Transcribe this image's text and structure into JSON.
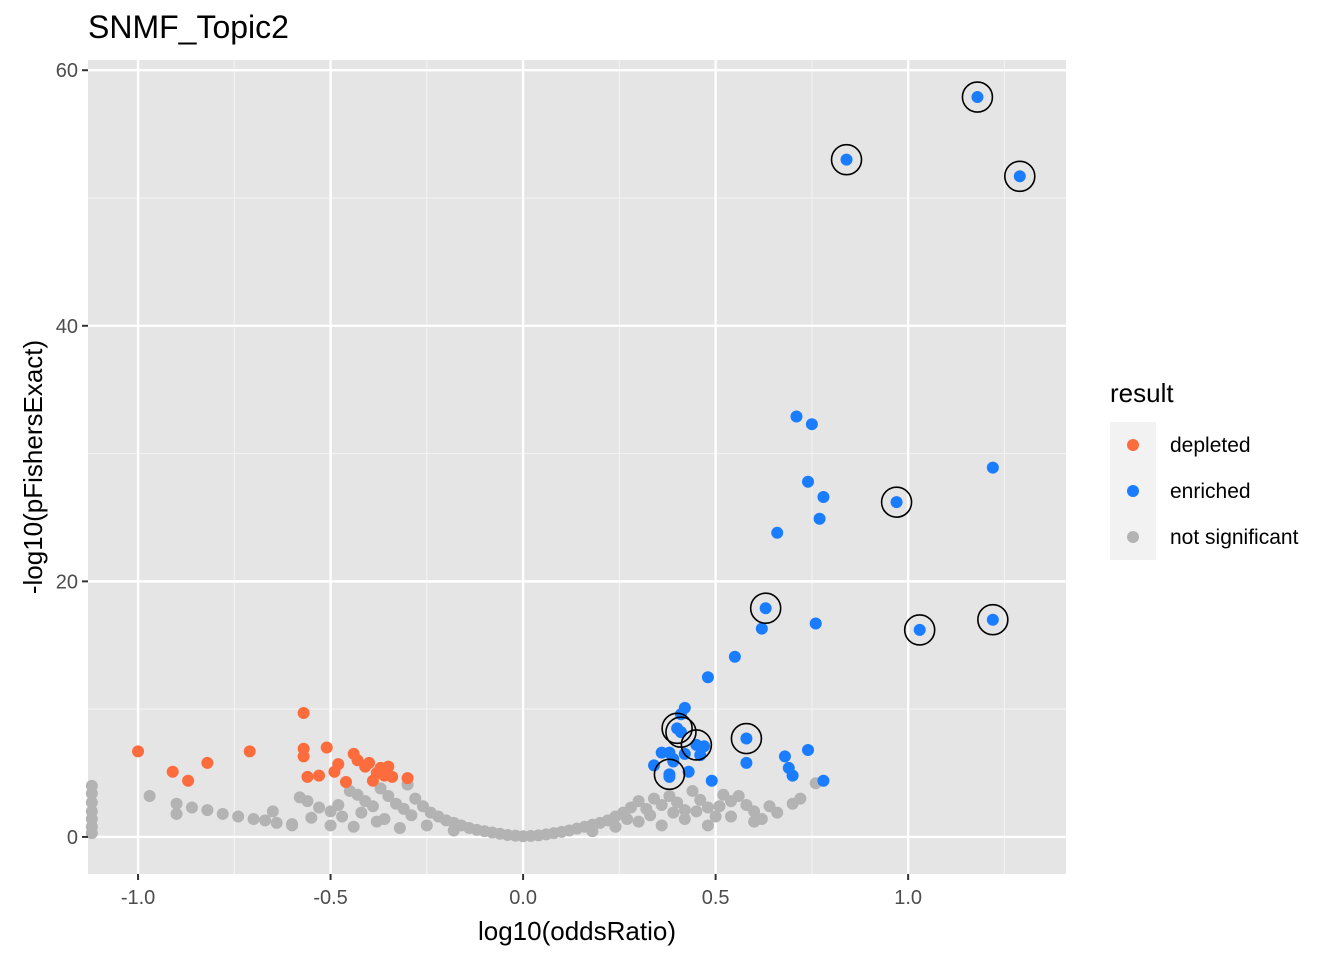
{
  "chart_data": {
    "type": "scatter",
    "title": "SNMF_Topic2",
    "xlabel": "log10(oddsRatio)",
    "ylabel": "-log10(pFishersExact)",
    "xlim": [
      -1.13,
      1.41
    ],
    "ylim": [
      -2.9,
      60.8
    ],
    "x_ticks": [
      -1.0,
      -0.5,
      0.0,
      0.5,
      1.0
    ],
    "x_tick_labels": [
      "-1.0",
      "-0.5",
      "0.0",
      "0.5",
      "1.0"
    ],
    "y_ticks": [
      0,
      20,
      40,
      60
    ],
    "y_tick_labels": [
      "0",
      "20",
      "40",
      "60"
    ],
    "grid": true,
    "panel_background": "#e5e5e5",
    "legend": {
      "title": "result",
      "position": "right",
      "entries": [
        {
          "label": "depleted",
          "color": "#fc6c3d"
        },
        {
          "label": "enriched",
          "color": "#1a7cff"
        },
        {
          "label": "not significant",
          "color": "#b3b3b3"
        }
      ]
    },
    "series": [
      {
        "name": "depleted",
        "color": "#fc6c3d",
        "points": [
          [
            -1.0,
            6.7
          ],
          [
            -0.91,
            5.1
          ],
          [
            -0.87,
            4.4
          ],
          [
            -0.82,
            5.8
          ],
          [
            -0.71,
            6.7
          ],
          [
            -0.57,
            9.7
          ],
          [
            -0.57,
            6.9
          ],
          [
            -0.57,
            6.3
          ],
          [
            -0.56,
            4.7
          ],
          [
            -0.53,
            4.8
          ],
          [
            -0.51,
            7.0
          ],
          [
            -0.49,
            5.1
          ],
          [
            -0.48,
            5.7
          ],
          [
            -0.46,
            4.3
          ],
          [
            -0.44,
            6.5
          ],
          [
            -0.43,
            6.0
          ],
          [
            -0.41,
            5.5
          ],
          [
            -0.4,
            5.8
          ],
          [
            -0.39,
            4.4
          ],
          [
            -0.38,
            5.0
          ],
          [
            -0.37,
            5.4
          ],
          [
            -0.36,
            4.8
          ],
          [
            -0.35,
            5.5
          ],
          [
            -0.34,
            4.7
          ],
          [
            -0.3,
            4.6
          ]
        ]
      },
      {
        "name": "enriched",
        "color": "#1a7cff",
        "points": [
          [
            1.18,
            57.9
          ],
          [
            0.84,
            53.0
          ],
          [
            1.29,
            51.7
          ],
          [
            0.71,
            32.9
          ],
          [
            0.75,
            32.3
          ],
          [
            1.22,
            28.9
          ],
          [
            0.74,
            27.8
          ],
          [
            0.78,
            26.6
          ],
          [
            0.97,
            26.2
          ],
          [
            0.77,
            24.9
          ],
          [
            0.66,
            23.8
          ],
          [
            0.63,
            17.9
          ],
          [
            1.22,
            17.0
          ],
          [
            0.76,
            16.7
          ],
          [
            0.62,
            16.3
          ],
          [
            1.03,
            16.2
          ],
          [
            0.55,
            14.1
          ],
          [
            0.48,
            12.5
          ],
          [
            0.42,
            10.1
          ],
          [
            0.41,
            9.6
          ],
          [
            0.4,
            8.5
          ],
          [
            0.41,
            8.2
          ],
          [
            0.45,
            7.2
          ],
          [
            0.47,
            7.1
          ],
          [
            0.58,
            7.7
          ],
          [
            0.74,
            6.8
          ],
          [
            0.36,
            6.6
          ],
          [
            0.38,
            6.6
          ],
          [
            0.42,
            6.5
          ],
          [
            0.46,
            6.4
          ],
          [
            0.68,
            6.3
          ],
          [
            0.39,
            5.9
          ],
          [
            0.34,
            5.6
          ],
          [
            0.58,
            5.8
          ],
          [
            0.69,
            5.4
          ],
          [
            0.43,
            5.1
          ],
          [
            0.38,
            4.9
          ],
          [
            0.38,
            4.7
          ],
          [
            0.7,
            4.8
          ],
          [
            0.49,
            4.4
          ],
          [
            0.78,
            4.4
          ],
          [
            0.39,
            6.1
          ]
        ]
      },
      {
        "name": "not significant",
        "color": "#b3b3b3",
        "points": [
          [
            -1.12,
            4.0
          ],
          [
            -1.12,
            3.4
          ],
          [
            -1.12,
            2.7
          ],
          [
            -1.12,
            2.0
          ],
          [
            -1.12,
            1.4
          ],
          [
            -1.12,
            0.8
          ],
          [
            -1.12,
            0.3
          ],
          [
            -0.97,
            3.2
          ],
          [
            -0.9,
            2.6
          ],
          [
            -0.86,
            2.3
          ],
          [
            -0.82,
            2.1
          ],
          [
            -0.78,
            1.8
          ],
          [
            -0.74,
            1.6
          ],
          [
            -0.7,
            1.4
          ],
          [
            -0.67,
            1.3
          ],
          [
            -0.64,
            1.1
          ],
          [
            -0.6,
            1.0
          ],
          [
            -0.58,
            3.1
          ],
          [
            -0.56,
            2.8
          ],
          [
            -0.53,
            2.3
          ],
          [
            -0.5,
            2.0
          ],
          [
            -0.47,
            1.6
          ],
          [
            -0.45,
            3.6
          ],
          [
            -0.43,
            3.3
          ],
          [
            -0.41,
            2.8
          ],
          [
            -0.39,
            2.4
          ],
          [
            -0.37,
            3.8
          ],
          [
            -0.35,
            3.2
          ],
          [
            -0.33,
            2.6
          ],
          [
            -0.31,
            2.2
          ],
          [
            -0.3,
            4.1
          ],
          [
            -0.28,
            3.0
          ],
          [
            -0.26,
            2.4
          ],
          [
            -0.24,
            1.9
          ],
          [
            -0.22,
            1.6
          ],
          [
            -0.2,
            1.3
          ],
          [
            -0.18,
            1.1
          ],
          [
            -0.16,
            0.9
          ],
          [
            -0.14,
            0.7
          ],
          [
            -0.12,
            0.55
          ],
          [
            -0.1,
            0.45
          ],
          [
            -0.08,
            0.35
          ],
          [
            -0.06,
            0.25
          ],
          [
            -0.04,
            0.15
          ],
          [
            -0.02,
            0.1
          ],
          [
            0.0,
            0.05
          ],
          [
            0.02,
            0.08
          ],
          [
            0.04,
            0.12
          ],
          [
            0.06,
            0.2
          ],
          [
            0.08,
            0.3
          ],
          [
            0.1,
            0.4
          ],
          [
            0.12,
            0.5
          ],
          [
            0.14,
            0.65
          ],
          [
            0.16,
            0.8
          ],
          [
            0.18,
            0.95
          ],
          [
            0.2,
            1.1
          ],
          [
            0.22,
            1.3
          ],
          [
            0.24,
            1.6
          ],
          [
            0.26,
            1.9
          ],
          [
            0.28,
            2.3
          ],
          [
            0.3,
            2.8
          ],
          [
            0.32,
            2.2
          ],
          [
            0.34,
            3.0
          ],
          [
            0.36,
            2.5
          ],
          [
            0.38,
            3.2
          ],
          [
            0.4,
            2.7
          ],
          [
            0.42,
            2.1
          ],
          [
            0.44,
            3.6
          ],
          [
            0.46,
            2.9
          ],
          [
            0.48,
            2.3
          ],
          [
            0.5,
            1.6
          ],
          [
            0.52,
            3.3
          ],
          [
            0.54,
            2.8
          ],
          [
            0.56,
            3.2
          ],
          [
            0.58,
            2.5
          ],
          [
            0.6,
            2.0
          ],
          [
            0.62,
            1.4
          ],
          [
            0.64,
            2.4
          ],
          [
            0.66,
            1.9
          ],
          [
            0.7,
            2.6
          ],
          [
            0.72,
            3.0
          ],
          [
            0.76,
            4.2
          ],
          [
            -0.9,
            1.8
          ],
          [
            -0.65,
            2.0
          ],
          [
            -0.55,
            1.5
          ],
          [
            -0.5,
            0.9
          ],
          [
            -0.44,
            0.8
          ],
          [
            -0.38,
            1.2
          ],
          [
            -0.32,
            0.7
          ],
          [
            -0.25,
            0.9
          ],
          [
            -0.18,
            0.5
          ],
          [
            0.18,
            0.45
          ],
          [
            0.24,
            0.8
          ],
          [
            0.3,
            1.2
          ],
          [
            0.36,
            0.9
          ],
          [
            0.42,
            1.4
          ],
          [
            0.48,
            0.9
          ],
          [
            0.54,
            1.6
          ],
          [
            0.6,
            1.2
          ],
          [
            -0.6,
            0.9
          ],
          [
            -0.48,
            2.5
          ],
          [
            -0.42,
            1.9
          ],
          [
            -0.36,
            1.4
          ],
          [
            -0.29,
            1.7
          ],
          [
            0.27,
            1.4
          ],
          [
            0.33,
            1.7
          ],
          [
            0.39,
            1.9
          ],
          [
            0.45,
            2.0
          ],
          [
            0.51,
            2.4
          ]
        ]
      }
    ],
    "highlighted_points": [
      [
        1.18,
        57.9
      ],
      [
        0.84,
        53.0
      ],
      [
        1.29,
        51.7
      ],
      [
        0.97,
        26.2
      ],
      [
        0.63,
        17.9
      ],
      [
        1.22,
        17.0
      ],
      [
        1.03,
        16.2
      ],
      [
        0.4,
        8.5
      ],
      [
        0.41,
        8.2
      ],
      [
        0.45,
        7.2
      ],
      [
        0.58,
        7.7
      ],
      [
        0.38,
        4.9
      ]
    ]
  }
}
